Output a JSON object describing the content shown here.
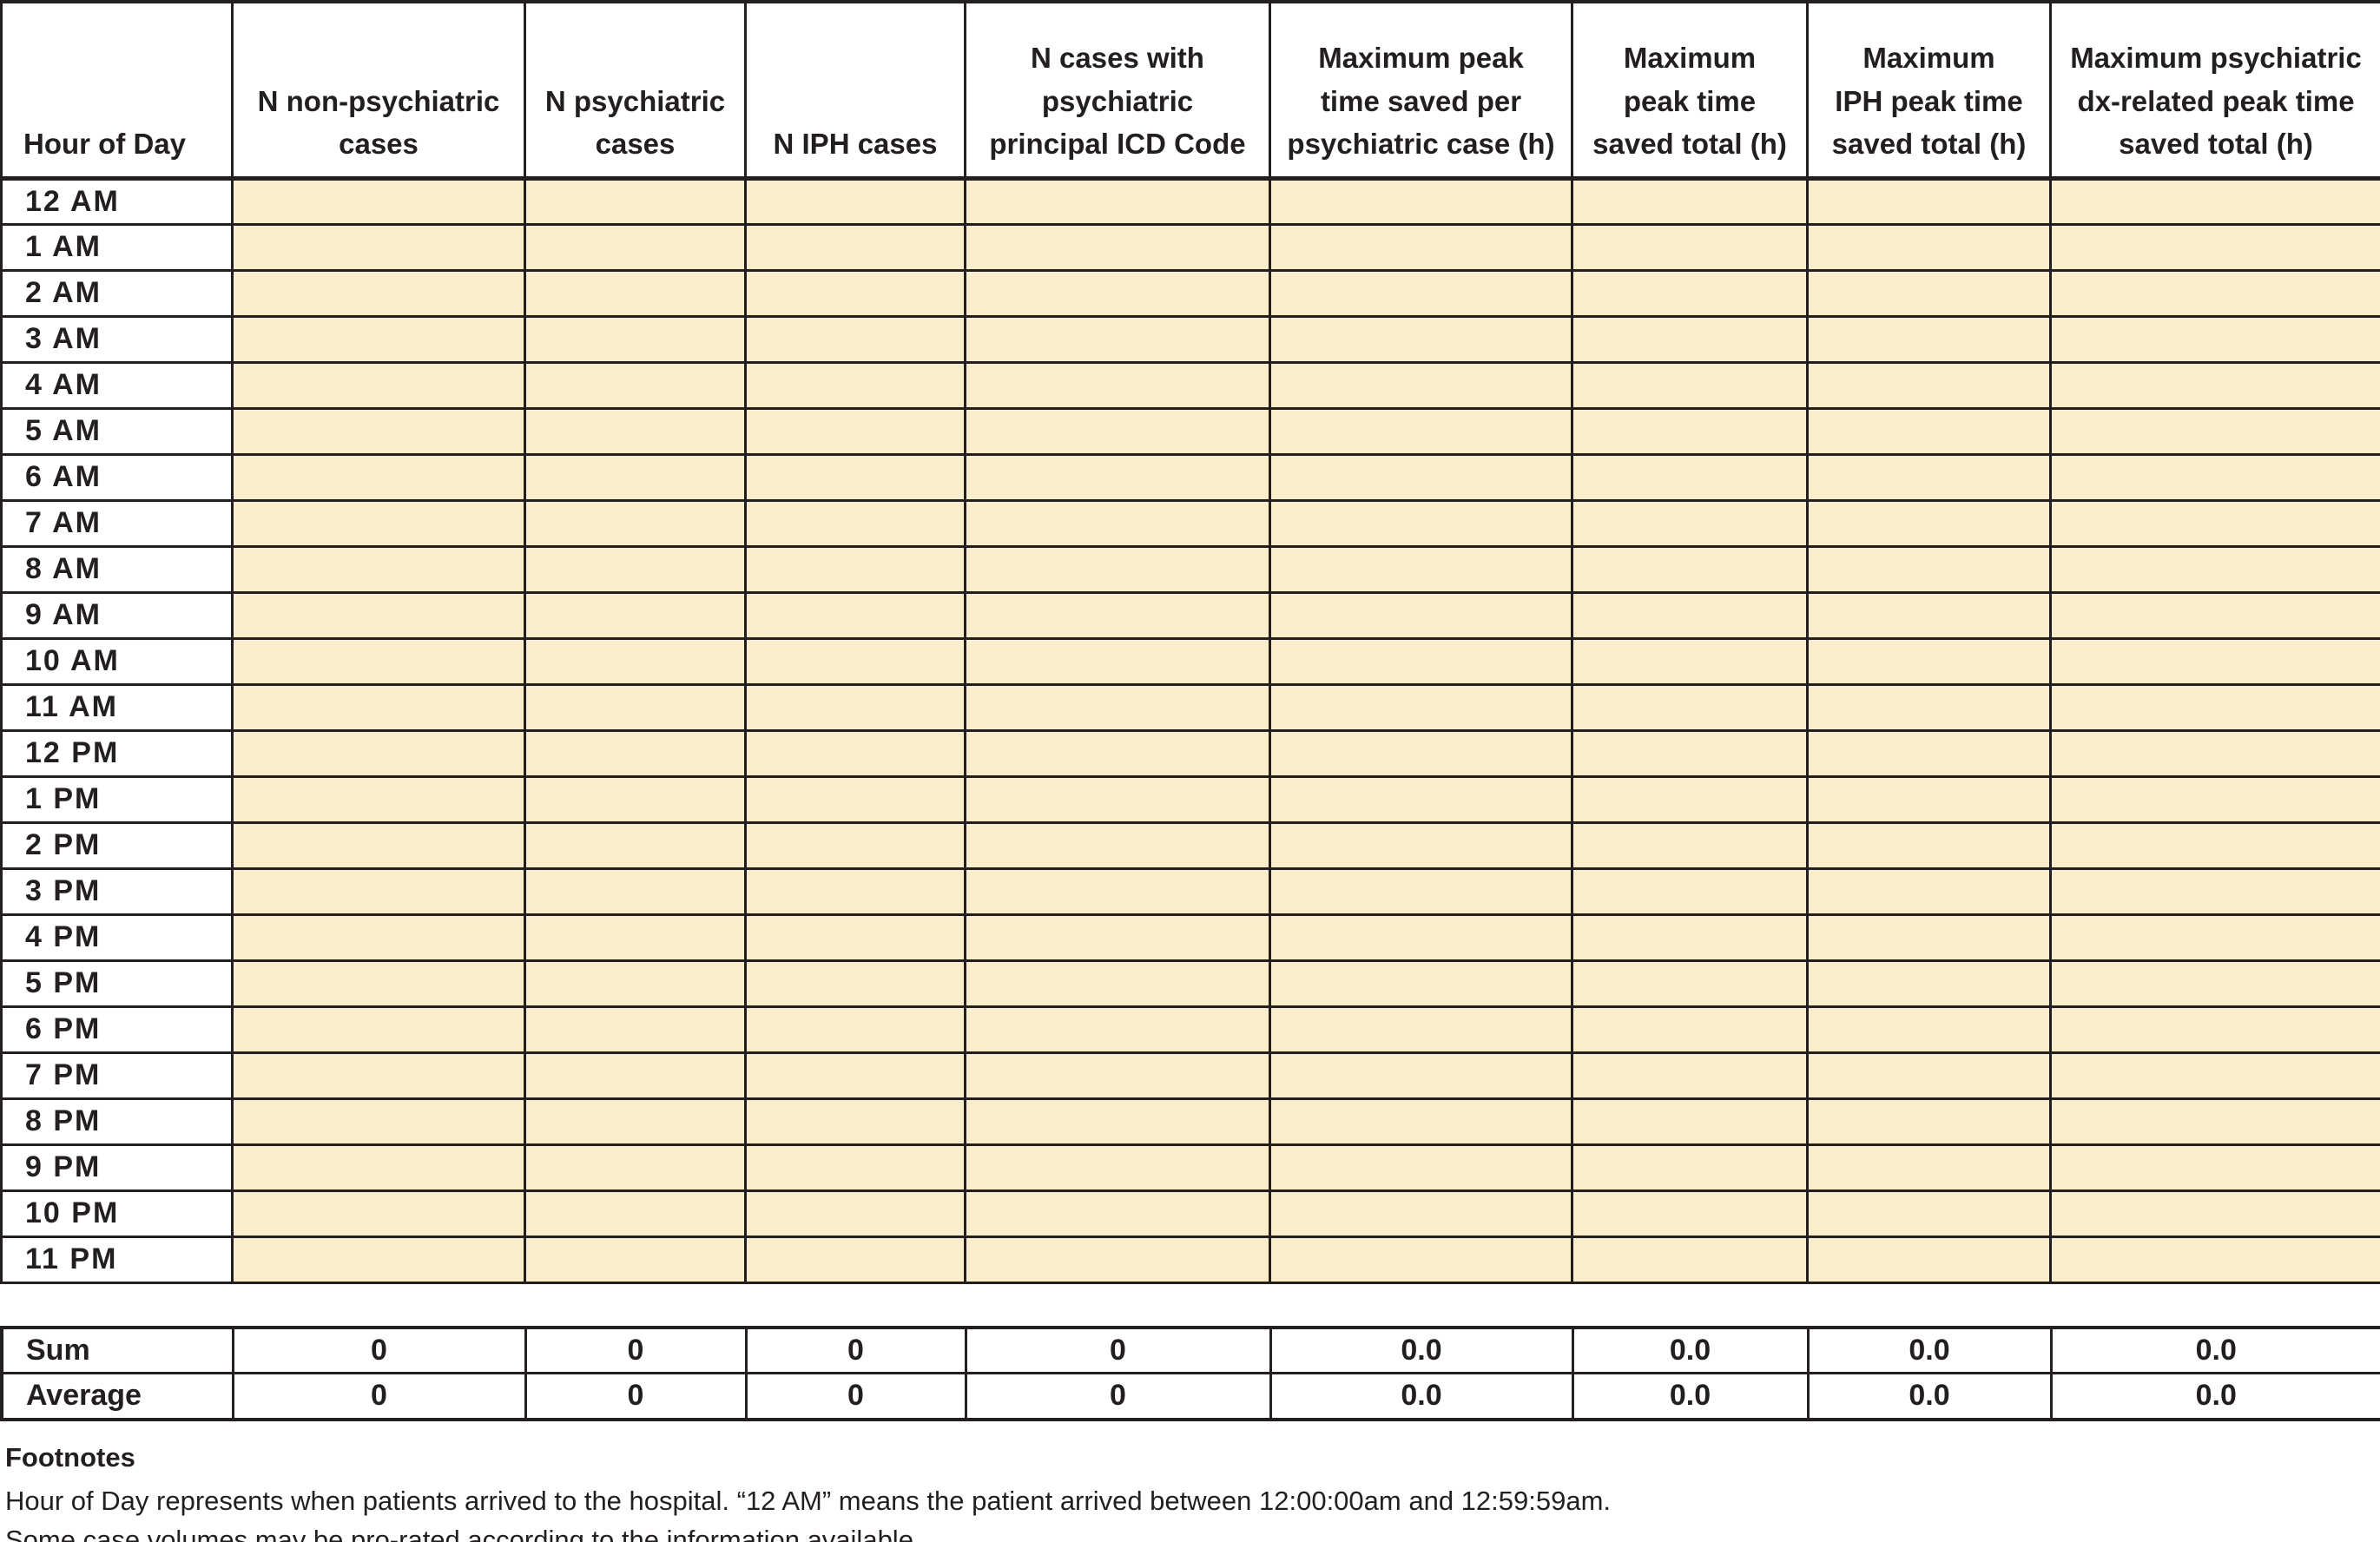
{
  "table": {
    "columns": [
      "Hour of Day",
      "N non-psychiatric\ncases",
      "N psychiatric\ncases",
      "N IPH cases",
      "N cases with\npsychiatric\nprincipal ICD Code",
      "Maximum peak\ntime saved per\npsychiatric case (h)",
      "Maximum\npeak time\nsaved total (h)",
      "Maximum\nIPH peak time\nsaved total (h)",
      "Maximum psychiatric\ndx-related peak time\nsaved total (h)"
    ],
    "hour_rows": [
      "12 AM",
      "1 AM",
      "2 AM",
      "3 AM",
      "4 AM",
      "5 AM",
      "6 AM",
      "7 AM",
      "8 AM",
      "9 AM",
      "10 AM",
      "11 AM",
      "12 PM",
      "1 PM",
      "2 PM",
      "3 PM",
      "4 PM",
      "5 PM",
      "6 PM",
      "7 PM",
      "8 PM",
      "9 PM",
      "10 PM",
      "11 PM"
    ]
  },
  "summary": {
    "rows": [
      {
        "label": "Sum",
        "values": [
          "0",
          "0",
          "0",
          "0",
          "0.0",
          "0.0",
          "0.0",
          "0.0"
        ]
      },
      {
        "label": "Average",
        "values": [
          "0",
          "0",
          "0",
          "0",
          "0.0",
          "0.0",
          "0.0",
          "0.0"
        ]
      }
    ]
  },
  "footnotes": {
    "title": "Footnotes",
    "lines": [
      "Hour of Day represents when patients arrived to the hospital. “12 AM” means the patient arrived between 12:00:00am and 12:59:59am.",
      "Some case volumes may be pro-rated according to the information available."
    ]
  },
  "colors": {
    "cell_fill": "#fbefcb",
    "border": "#231f20",
    "text": "#231f20"
  }
}
